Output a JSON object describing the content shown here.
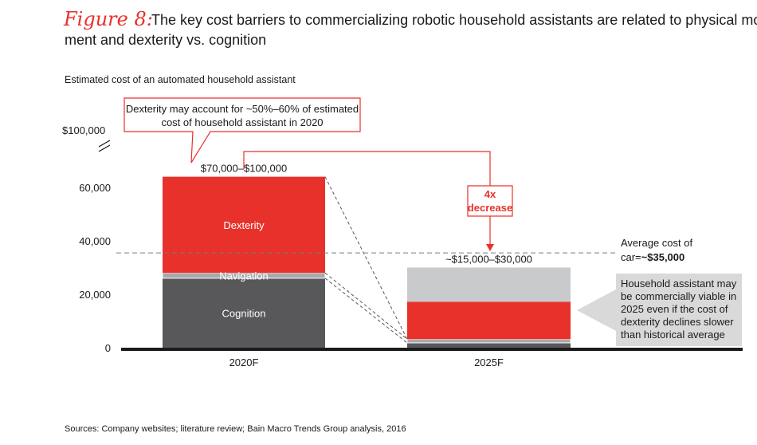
{
  "figure_label": "Figure 8:",
  "title_line1": "The key cost barriers to commercializing robotic household assistants are related to physical move-",
  "title_line2": "ment and dexterity vs. cognition",
  "subtitle": "Estimated cost of an automated household assistant",
  "source": "Sources: Company websites; literature review; Bain Macro Trends Group analysis, 2016",
  "colors": {
    "accent": "#e8312b",
    "cognition": "#58585a",
    "navigation": "#a7a9ac",
    "top": "#c9cacc",
    "callout_bg": "#d9d9da"
  },
  "chart_data": {
    "type": "bar",
    "stacked": true,
    "title": "Estimated cost of an automated household assistant",
    "categories": [
      "2020F",
      "2025F"
    ],
    "series": [
      {
        "name": "Cognition",
        "values": [
          26000,
          1800
        ]
      },
      {
        "name": "Navigation",
        "values": [
          2000,
          1400
        ]
      },
      {
        "name": "Dexterity",
        "values": [
          36000,
          14000
        ]
      },
      {
        "name": "Remaining range",
        "values": [
          0,
          12800
        ]
      }
    ],
    "y_ticks": [
      "0",
      "20,000",
      "40,000",
      "60,000"
    ],
    "y_tick_values": [
      0,
      20000,
      40000,
      60000
    ],
    "y_break_label": "$100,000",
    "ylim": [
      0,
      70000
    ],
    "bar_totals": [
      "$70,000–$100,000",
      "~$15,000–$30,000"
    ],
    "segment_labels": {
      "dexterity": "Dexterity",
      "navigation": "Navigation",
      "cognition": "Cognition"
    },
    "reference_line": {
      "value": 35500,
      "label_line1": "Average cost of",
      "label_line2_prefix": "car=",
      "label_line2_value": "~$35,000"
    },
    "decrease_label_line1": "4x",
    "decrease_label_line2": "decrease",
    "callout_top_line1": "Dexterity may account  for ~50%–60% of estimated",
    "callout_top_line2": "cost of household assistant in 2020",
    "callout_right_lines": [
      "Household assistant may",
      "be commercially viable in",
      "2025 even if the cost of",
      "dexterity declines slower",
      "than historical average"
    ]
  }
}
